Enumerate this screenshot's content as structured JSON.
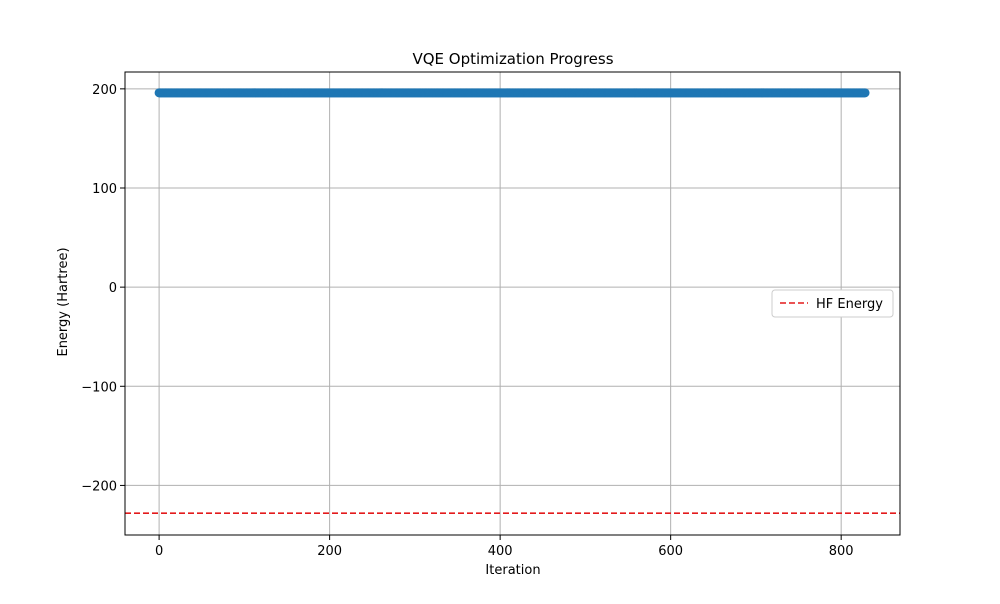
{
  "chart_data": {
    "type": "scatter",
    "title": "VQE Optimization Progress",
    "xlabel": "Iteration",
    "ylabel": "Energy (Hartree)",
    "xlim": [
      -40,
      869
    ],
    "ylim": [
      -250,
      217
    ],
    "xticks": [
      0,
      200,
      400,
      600,
      800
    ],
    "yticks": [
      -200,
      -100,
      0,
      100,
      200
    ],
    "xtick_labels": [
      "0",
      "200",
      "400",
      "600",
      "800"
    ],
    "ytick_labels": [
      "−200",
      "−100",
      "0",
      "100",
      "200"
    ],
    "grid": true,
    "legend_position": "center-right",
    "series": [
      {
        "x_start": 0,
        "x_end": 828,
        "x_step": 1,
        "y": 196,
        "color": "#1f77b4",
        "marker": "circle"
      }
    ],
    "reference_lines": [
      {
        "name": "HF Energy",
        "y": -228,
        "color": "#e31a1c",
        "style": "dashed"
      }
    ]
  }
}
